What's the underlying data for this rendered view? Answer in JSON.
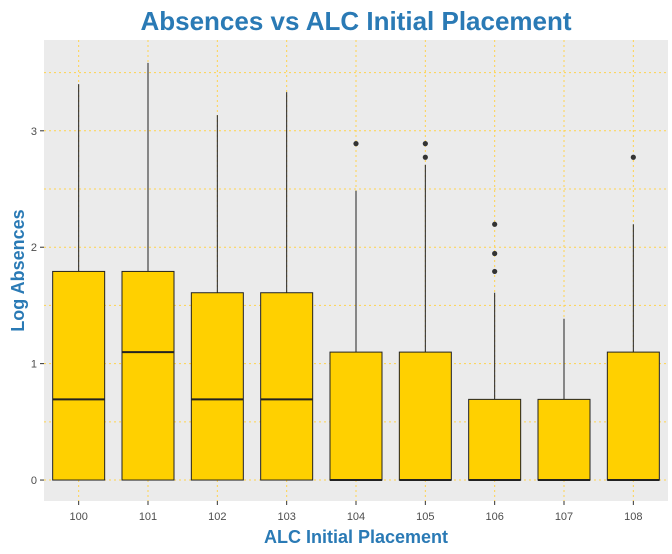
{
  "chart_data": {
    "type": "box",
    "title": "Absences vs ALC Initial Placement",
    "xlabel": "ALC Initial Placement",
    "ylabel": "Log Absences",
    "categories": [
      "100",
      "101",
      "102",
      "103",
      "104",
      "105",
      "106",
      "107",
      "108"
    ],
    "ylim": [
      -0.18,
      3.78
    ],
    "yticks": [
      0,
      1,
      2,
      3
    ],
    "ytick_labels": [
      "0",
      "1",
      "2",
      "3"
    ],
    "grid": true,
    "legend": "none",
    "boxes": [
      {
        "category": "100",
        "whisker_low": 0,
        "q1": 0,
        "median": 0.693,
        "q3": 1.792,
        "whisker_high": 3.401,
        "outliers": []
      },
      {
        "category": "101",
        "whisker_low": 0,
        "q1": 0,
        "median": 1.099,
        "q3": 1.792,
        "whisker_high": 3.584,
        "outliers": []
      },
      {
        "category": "102",
        "whisker_low": 0,
        "q1": 0,
        "median": 0.693,
        "q3": 1.609,
        "whisker_high": 3.135,
        "outliers": []
      },
      {
        "category": "103",
        "whisker_low": 0,
        "q1": 0,
        "median": 0.693,
        "q3": 1.609,
        "whisker_high": 3.332,
        "outliers": []
      },
      {
        "category": "104",
        "whisker_low": 0,
        "q1": 0,
        "median": 0,
        "q3": 1.099,
        "whisker_high": 2.485,
        "outliers": [
          2.89
        ]
      },
      {
        "category": "105",
        "whisker_low": 0,
        "q1": 0,
        "median": 0,
        "q3": 1.099,
        "whisker_high": 2.708,
        "outliers": [
          2.773,
          2.89
        ]
      },
      {
        "category": "106",
        "whisker_low": 0,
        "q1": 0,
        "median": 0,
        "q3": 0.693,
        "whisker_high": 1.609,
        "outliers": [
          1.792,
          1.946,
          2.197
        ]
      },
      {
        "category": "107",
        "whisker_low": 0,
        "q1": 0,
        "median": 0,
        "q3": 0.693,
        "whisker_high": 1.386,
        "outliers": []
      },
      {
        "category": "108",
        "whisker_low": 0,
        "q1": 0,
        "median": 0,
        "q3": 1.099,
        "whisker_high": 2.197,
        "outliers": [
          2.773
        ]
      }
    ]
  },
  "colors": {
    "panel_background": "#EBEBEB",
    "box_fill": "#FFD000",
    "box_line": "#222222",
    "grid": "#FFD34D",
    "title": "#2A7AB5",
    "tick_text": "#4D4D4D",
    "tick_mark": "#333333",
    "outlier": "#333333"
  }
}
